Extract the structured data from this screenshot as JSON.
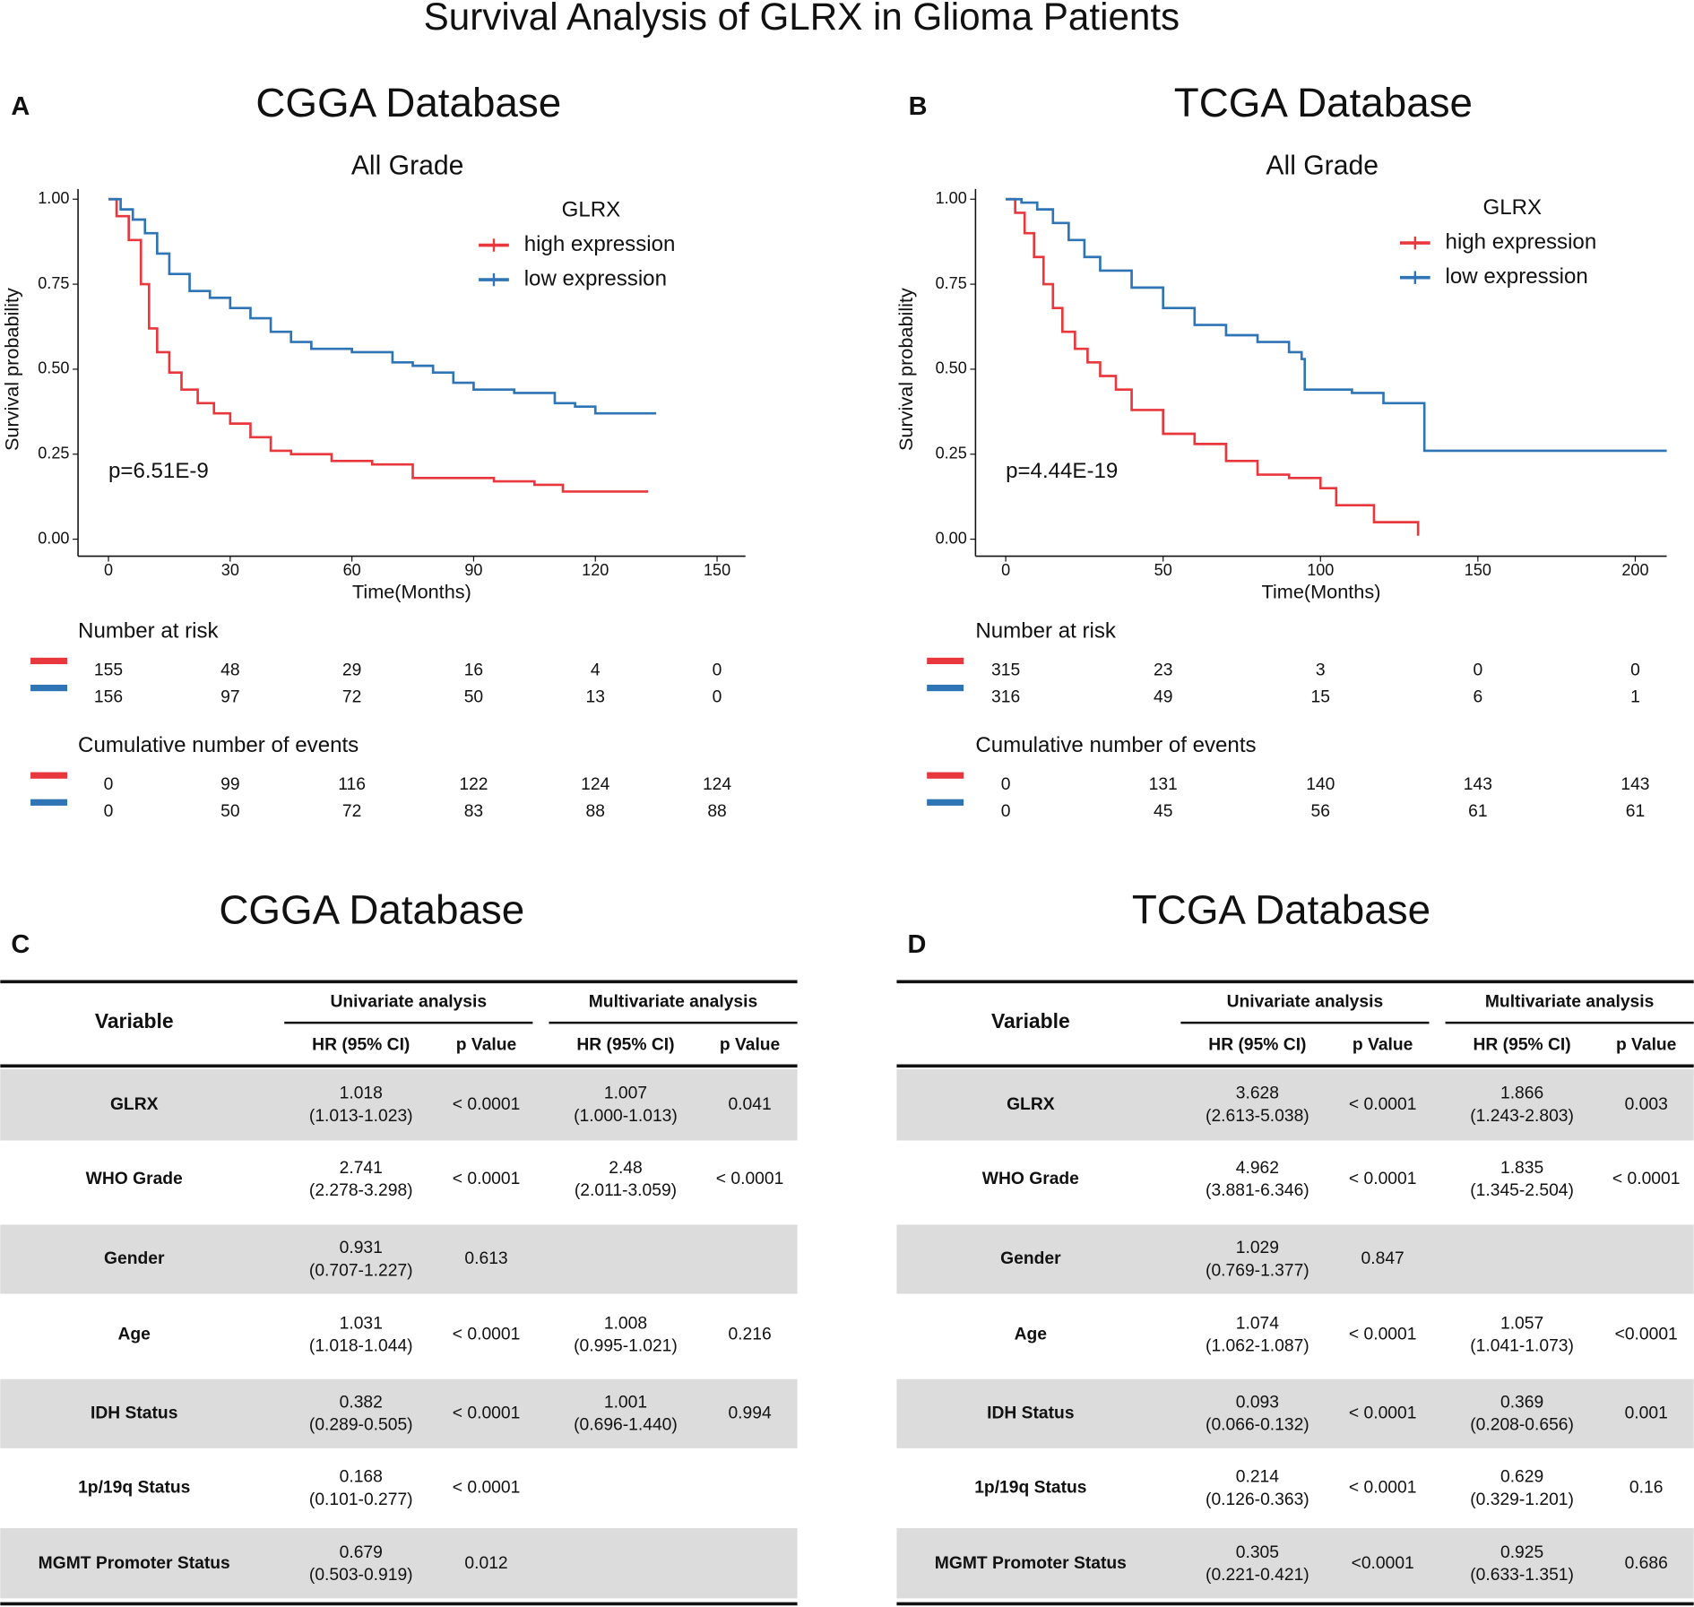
{
  "title": "Survival Analysis of GLRX in Glioma Patients",
  "chart_data": [
    {
      "type": "km",
      "panel": "A",
      "title": "CGGA Database",
      "subtitle": "All Grade",
      "xlabel": "Time(Months)",
      "ylabel": "Survival probability",
      "legend_title": "GLRX",
      "annotation": "p=6.51E-9",
      "xlim": [
        -7.5,
        157
      ],
      "xticks": [
        0,
        30,
        60,
        90,
        120,
        150
      ],
      "ylim": [
        -0.05,
        1.03
      ],
      "yticks": [
        {
          "value": 0,
          "label": "0.00"
        },
        {
          "value": 0.25,
          "label": "0.25"
        },
        {
          "value": 0.5,
          "label": "0.50"
        },
        {
          "value": 0.75,
          "label": "0.75"
        },
        {
          "value": 1,
          "label": "1.00"
        }
      ],
      "series": [
        {
          "name": "high expression",
          "color": "#e8383d",
          "x": [
            0,
            2,
            5,
            8,
            10,
            12,
            15,
            18,
            22,
            26,
            30,
            35,
            40,
            45,
            55,
            65,
            75,
            85,
            95,
            105,
            112,
            120,
            133
          ],
          "values": [
            1,
            0.95,
            0.88,
            0.75,
            0.62,
            0.55,
            0.49,
            0.44,
            0.4,
            0.37,
            0.34,
            0.3,
            0.26,
            0.25,
            0.23,
            0.22,
            0.18,
            0.18,
            0.17,
            0.16,
            0.14,
            0.14,
            0.14
          ]
        },
        {
          "name": "low expression",
          "color": "#2f74b5",
          "x": [
            0,
            3,
            6,
            9,
            12,
            15,
            20,
            25,
            30,
            35,
            40,
            45,
            50,
            60,
            70,
            75,
            80,
            85,
            90,
            100,
            110,
            115,
            120,
            135
          ],
          "values": [
            1,
            0.97,
            0.94,
            0.9,
            0.84,
            0.78,
            0.73,
            0.71,
            0.68,
            0.65,
            0.61,
            0.58,
            0.56,
            0.55,
            0.52,
            0.51,
            0.49,
            0.46,
            0.44,
            0.43,
            0.4,
            0.39,
            0.37,
            0.37
          ]
        }
      ],
      "risk_table": {
        "title": "Number at risk",
        "rows": [
          [
            155,
            48,
            29,
            16,
            4,
            0
          ],
          [
            156,
            97,
            72,
            50,
            13,
            0
          ]
        ]
      },
      "events_table": {
        "title": "Cumulative number of events",
        "rows": [
          [
            0,
            99,
            116,
            122,
            124,
            124
          ],
          [
            0,
            50,
            72,
            83,
            88,
            88
          ]
        ]
      }
    },
    {
      "type": "km",
      "panel": "B",
      "title": "TCGA Database",
      "subtitle": "All Grade",
      "xlabel": "Time(Months)",
      "ylabel": "Survival probability",
      "legend_title": "GLRX",
      "annotation": "p=4.44E-19",
      "xlim": [
        -9.6,
        210
      ],
      "xticks": [
        0,
        50,
        100,
        150,
        200
      ],
      "ylim": [
        -0.05,
        1.03
      ],
      "yticks": [
        {
          "value": 0,
          "label": "0.00"
        },
        {
          "value": 0.25,
          "label": "0.25"
        },
        {
          "value": 0.5,
          "label": "0.50"
        },
        {
          "value": 0.75,
          "label": "0.75"
        },
        {
          "value": 1,
          "label": "1.00"
        }
      ],
      "series": [
        {
          "name": "high expression",
          "color": "#e8383d",
          "x": [
            0,
            3,
            6,
            9,
            12,
            15,
            18,
            22,
            26,
            30,
            35,
            40,
            50,
            60,
            70,
            80,
            90,
            100,
            105,
            117,
            130,
            131
          ],
          "values": [
            1,
            0.96,
            0.9,
            0.83,
            0.75,
            0.68,
            0.61,
            0.56,
            0.52,
            0.48,
            0.44,
            0.38,
            0.31,
            0.28,
            0.23,
            0.19,
            0.18,
            0.15,
            0.1,
            0.05,
            0.05,
            0.01
          ]
        },
        {
          "name": "low expression",
          "color": "#2f74b5",
          "x": [
            0,
            5,
            10,
            15,
            20,
            25,
            30,
            40,
            50,
            60,
            70,
            80,
            90,
            94,
            95,
            110,
            120,
            132,
            133,
            210
          ],
          "values": [
            1,
            0.99,
            0.97,
            0.93,
            0.88,
            0.83,
            0.79,
            0.74,
            0.68,
            0.63,
            0.6,
            0.58,
            0.55,
            0.53,
            0.44,
            0.43,
            0.4,
            0.4,
            0.26,
            0.26
          ]
        }
      ],
      "risk_table": {
        "title": "Number at risk",
        "rows": [
          [
            315,
            23,
            3,
            0,
            0
          ],
          [
            316,
            49,
            15,
            6,
            1
          ]
        ]
      },
      "events_table": {
        "title": "Cumulative number of events",
        "rows": [
          [
            0,
            131,
            140,
            143,
            143
          ],
          [
            0,
            45,
            56,
            61,
            61
          ]
        ]
      }
    }
  ],
  "tables": [
    {
      "panel": "C",
      "title": "CGGA Database",
      "variable_header": "Variable",
      "groups": [
        {
          "label": "Univariate analysis",
          "columns": [
            "HR (95% CI)",
            "p Value"
          ]
        },
        {
          "label": "Multivariate analysis",
          "columns": [
            "HR (95% CI)",
            "p Value"
          ]
        }
      ],
      "rows": [
        {
          "variable": "GLRX",
          "uni_hr": "1.018",
          "uni_ci": "(1.013-1.023)",
          "uni_p": "< 0.0001",
          "multi_hr": "1.007",
          "multi_ci": "(1.000-1.013)",
          "multi_p": "0.041"
        },
        {
          "variable": "WHO Grade",
          "uni_hr": "2.741",
          "uni_ci": "(2.278-3.298)",
          "uni_p": "< 0.0001",
          "multi_hr": "2.48",
          "multi_ci": "(2.011-3.059)",
          "multi_p": "< 0.0001"
        },
        {
          "variable": "Gender",
          "uni_hr": "0.931",
          "uni_ci": "(0.707-1.227)",
          "uni_p": "0.613"
        },
        {
          "variable": "Age",
          "uni_hr": "1.031",
          "uni_ci": "(1.018-1.044)",
          "uni_p": "< 0.0001",
          "multi_hr": "1.008",
          "multi_ci": "(0.995-1.021)",
          "multi_p": "0.216"
        },
        {
          "variable": "IDH Status",
          "uni_hr": "0.382",
          "uni_ci": "(0.289-0.505)",
          "uni_p": "< 0.0001",
          "multi_hr": "1.001",
          "multi_ci": "(0.696-1.440)",
          "multi_p": "0.994"
        },
        {
          "variable": "1p/19q Status",
          "uni_hr": "0.168",
          "uni_ci": "(0.101-0.277)",
          "uni_p": "< 0.0001"
        },
        {
          "variable": "MGMT Promoter Status",
          "uni_hr": "0.679",
          "uni_ci": "(0.503-0.919)",
          "uni_p": "0.012"
        }
      ]
    },
    {
      "panel": "D",
      "title": "TCGA Database",
      "variable_header": "Variable",
      "groups": [
        {
          "label": "Univariate analysis",
          "columns": [
            "HR (95% CI)",
            "p Value"
          ]
        },
        {
          "label": "Multivariate analysis",
          "columns": [
            "HR (95% CI)",
            "p Value"
          ]
        }
      ],
      "rows": [
        {
          "variable": "GLRX",
          "uni_hr": "3.628",
          "uni_ci": "(2.613-5.038)",
          "uni_p": "< 0.0001",
          "multi_hr": "1.866",
          "multi_ci": "(1.243-2.803)",
          "multi_p": "0.003"
        },
        {
          "variable": "WHO Grade",
          "uni_hr": "4.962",
          "uni_ci": "(3.881-6.346)",
          "uni_p": "< 0.0001",
          "multi_hr": "1.835",
          "multi_ci": "(1.345-2.504)",
          "multi_p": "< 0.0001"
        },
        {
          "variable": "Gender",
          "uni_hr": "1.029",
          "uni_ci": "(0.769-1.377)",
          "uni_p": "0.847"
        },
        {
          "variable": "Age",
          "uni_hr": "1.074",
          "uni_ci": "(1.062-1.087)",
          "uni_p": "< 0.0001",
          "multi_hr": "1.057",
          "multi_ci": "(1.041-1.073)",
          "multi_p": "<0.0001"
        },
        {
          "variable": "IDH Status",
          "uni_hr": "0.093",
          "uni_ci": "(0.066-0.132)",
          "uni_p": "< 0.0001",
          "multi_hr": "0.369",
          "multi_ci": "(0.208-0.656)",
          "multi_p": "0.001"
        },
        {
          "variable": "1p/19q Status",
          "uni_hr": "0.214",
          "uni_ci": "(0.126-0.363)",
          "uni_p": "< 0.0001",
          "multi_hr": "0.629",
          "multi_ci": "(0.329-1.201)",
          "multi_p": "0.16"
        },
        {
          "variable": "MGMT Promoter Status",
          "uni_hr": "0.305",
          "uni_ci": "(0.221-0.421)",
          "uni_p": "<0.0001",
          "multi_hr": "0.925",
          "multi_ci": "(0.633-1.351)",
          "multi_p": "0.686"
        }
      ]
    }
  ]
}
